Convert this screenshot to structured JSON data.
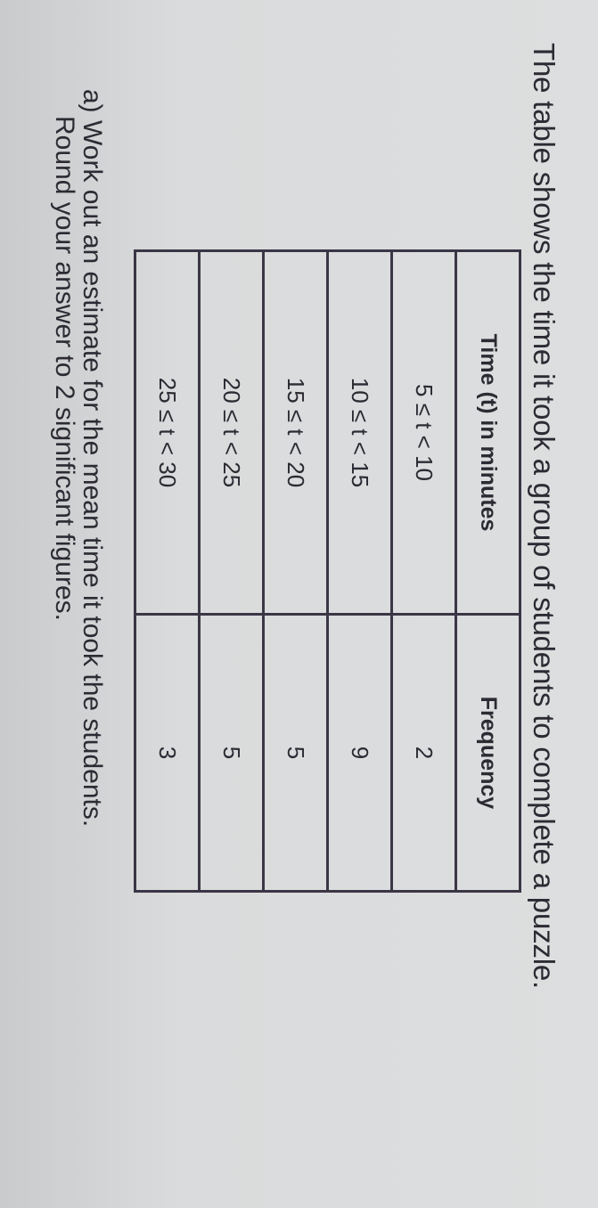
{
  "title": "The table shows the time it took a group of students to complete a puzzle.",
  "table": {
    "headers": [
      "Time (t) in minutes",
      "Frequency"
    ],
    "rows": [
      {
        "time": "5 ≤ t < 10",
        "frequency": "2"
      },
      {
        "time": "10 ≤ t < 15",
        "frequency": "9"
      },
      {
        "time": "15 ≤ t < 20",
        "frequency": "5"
      },
      {
        "time": "20 ≤ t < 25",
        "frequency": "5"
      },
      {
        "time": "25 ≤ t < 30",
        "frequency": "3"
      }
    ]
  },
  "question": {
    "line1": "a) Work out an estimate for the mean time it took the students.",
    "line2": "Round your answer to 2 significant figures."
  }
}
